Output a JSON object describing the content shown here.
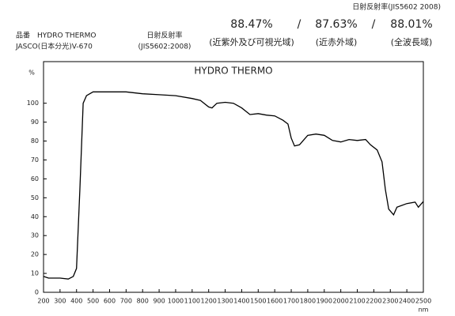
{
  "header": {
    "standard_title": "日射反射率(JIS5602 2008)",
    "results": [
      {
        "value": "88.47%",
        "range": "(近紫外及び可視光域)"
      },
      {
        "value": "87.63%",
        "range": "(近赤外域)"
      },
      {
        "value": "88.01%",
        "range": "(全波長域)"
      }
    ],
    "separator": "/",
    "product": "品番　HYDRO THERMO",
    "instrument": "JASCO(日本分光)V-670",
    "method": "日射反射率",
    "method_standard": "(JIS5602:2008)"
  },
  "chart_data": {
    "type": "line",
    "title": "HYDRO THERMO",
    "y_unit": "%",
    "x_unit": "nm",
    "color": "#000000",
    "x": [
      200,
      230,
      300,
      350,
      380,
      400,
      420,
      440,
      460,
      500,
      600,
      700,
      800,
      900,
      1000,
      1100,
      1150,
      1200,
      1220,
      1250,
      1300,
      1350,
      1400,
      1450,
      1500,
      1550,
      1600,
      1650,
      1680,
      1700,
      1720,
      1750,
      1800,
      1850,
      1900,
      1950,
      2000,
      2050,
      2100,
      2150,
      2180,
      2220,
      2250,
      2270,
      2290,
      2320,
      2340,
      2400,
      2450,
      2470,
      2500
    ],
    "values": [
      8.4,
      7.5,
      7.5,
      7,
      8.4,
      12.6,
      54,
      100,
      104,
      106,
      106,
      106,
      105,
      104.5,
      104,
      102.5,
      101.5,
      98,
      97.5,
      100,
      100.5,
      100,
      97.5,
      94,
      94.5,
      93.7,
      93.3,
      91,
      89,
      81.6,
      77.4,
      78,
      83,
      83.7,
      83,
      80.3,
      79.5,
      80.8,
      80.3,
      80.8,
      78,
      75.3,
      69,
      54.4,
      44,
      41,
      45,
      46.9,
      47.7,
      45,
      48
    ],
    "xlim": [
      200,
      2500
    ],
    "ylim": [
      0,
      122
    ],
    "xticks": [
      200,
      300,
      400,
      500,
      600,
      700,
      800,
      900,
      1000,
      1100,
      1200,
      1300,
      1400,
      1500,
      1600,
      1700,
      1800,
      1900,
      2000,
      2100,
      2200,
      2300,
      2400,
      2500
    ],
    "yticks": [
      0,
      10,
      20,
      30,
      40,
      50,
      60,
      70,
      80,
      90,
      100
    ],
    "grid": false
  }
}
